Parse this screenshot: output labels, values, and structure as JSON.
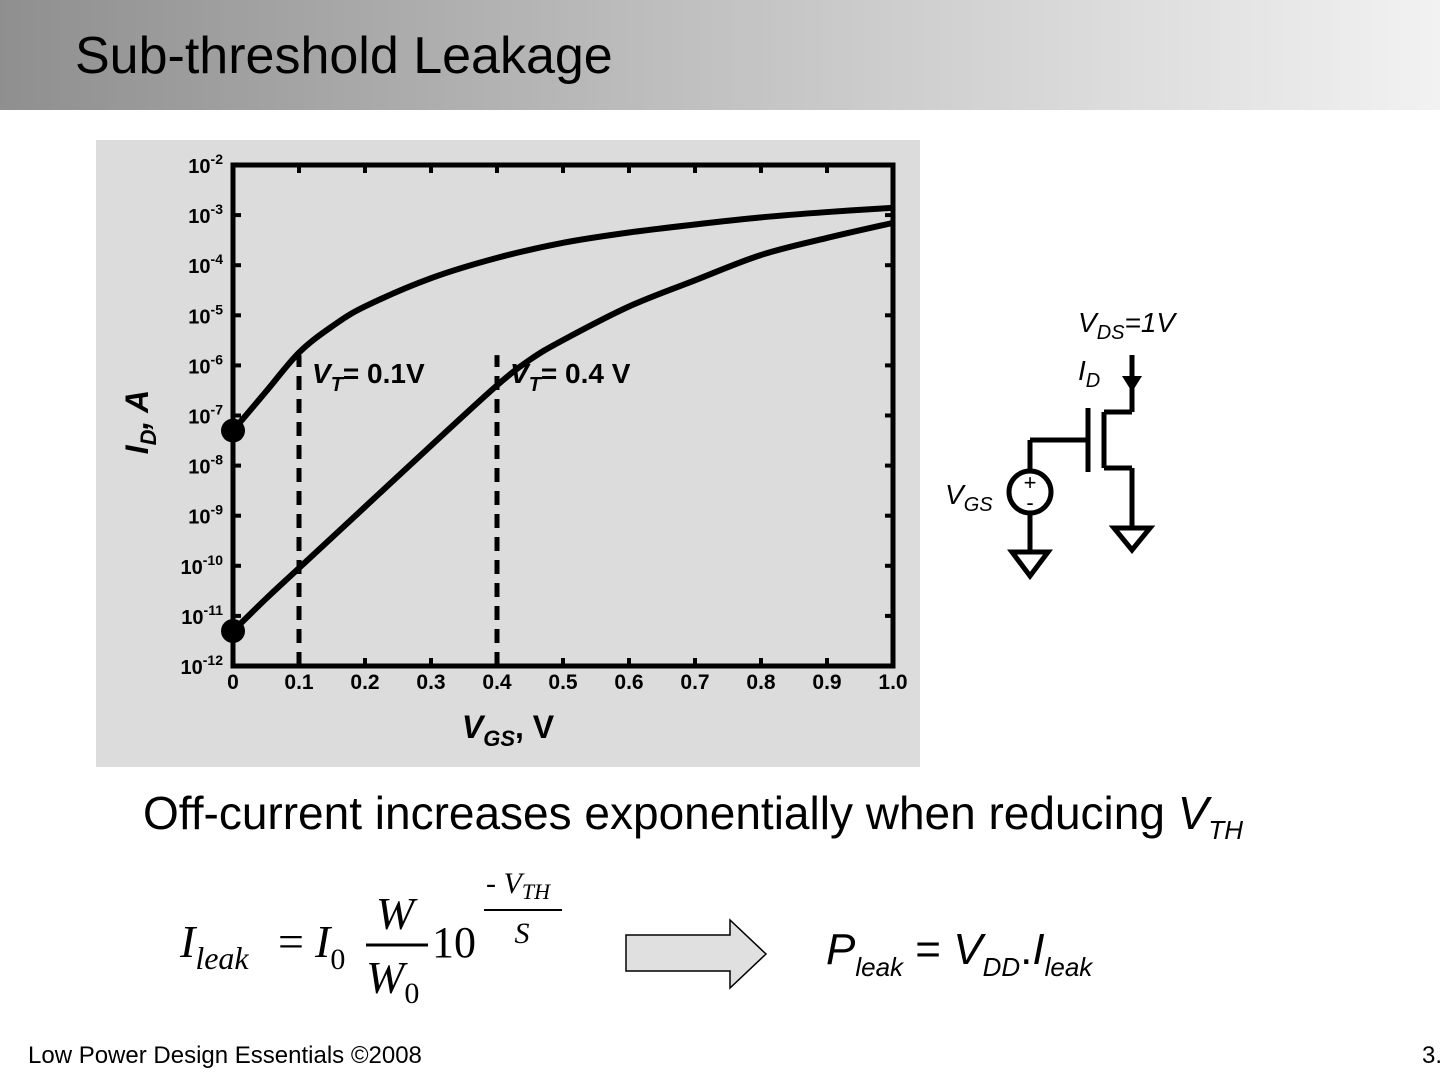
{
  "slide": {
    "title": "Sub-threshold Leakage",
    "footer": "Low Power Design Essentials ©2008",
    "page_number": "3.",
    "statement": {
      "text": "Off-current increases exponentially when reducing ",
      "var_main": "V",
      "var_sub": "TH"
    }
  },
  "chart_data": {
    "type": "line",
    "xlabel_main": "V",
    "xlabel_sub": "GS",
    "xlabel_unit": ", V",
    "ylabel_main": "I",
    "ylabel_sub": "D",
    "ylabel_unit": ", A",
    "y_scale": "log",
    "xlim": [
      0,
      1.0
    ],
    "ylim": [
      1e-12,
      0.01
    ],
    "x_ticks": [
      "0",
      "0.1",
      "0.2",
      "0.3",
      "0.4",
      "0.5",
      "0.6",
      "0.7",
      "0.8",
      "0.9",
      "1.0"
    ],
    "y_tick_exponents": [
      -2,
      -3,
      -4,
      -5,
      -6,
      -7,
      -8,
      -9,
      -10,
      -11,
      -12
    ],
    "series": [
      {
        "label": "VT = 0.1V",
        "label_main": "V",
        "label_sub": "T",
        "label_value": "= 0.1V",
        "vt": 0.1,
        "x": [
          0,
          0.05,
          0.1,
          0.15,
          0.2,
          0.3,
          0.4,
          0.5,
          0.6,
          0.7,
          0.8,
          0.9,
          1.0
        ],
        "y": [
          5e-08,
          3e-07,
          1.8e-06,
          6e-06,
          1.5e-05,
          5.5e-05,
          0.00014,
          0.00028,
          0.00045,
          0.00065,
          0.0009,
          0.00115,
          0.0014
        ]
      },
      {
        "label": "VT = 0.4 V",
        "label_main": "V",
        "label_sub": "T",
        "label_value": "= 0.4 V",
        "vt": 0.4,
        "x": [
          0,
          0.05,
          0.1,
          0.2,
          0.3,
          0.4,
          0.45,
          0.5,
          0.6,
          0.7,
          0.8,
          0.9,
          1.0
        ],
        "y": [
          5e-12,
          2.2e-11,
          9e-11,
          1.5e-09,
          2.5e-08,
          4e-07,
          1.3e-06,
          3.2e-06,
          1.5e-05,
          5e-05,
          0.00016,
          0.00035,
          0.0007
        ]
      }
    ]
  },
  "circuit": {
    "vds_main": "V",
    "vds_sub": "DS",
    "vds_value": "=1V",
    "id_main": "I",
    "id_sub": "D",
    "vgs_main": "V",
    "vgs_sub": "GS",
    "plus": "+",
    "minus": "-"
  },
  "equation": {
    "lhs_main": "I",
    "lhs_sub": "leak",
    "equals": "=",
    "i0_main": "I",
    "i0_sub": "0",
    "num": "W",
    "den_main": "W",
    "den_sub": "0",
    "base": "10",
    "exp_num": "- V",
    "exp_num_sub": "TH",
    "exp_den": "S"
  },
  "power_eq": {
    "p_main": "P",
    "p_sub": "leak",
    "equals": " = ",
    "v_main": "V",
    "v_sub": "DD",
    "dot": ".",
    "i_main": "I",
    "i_sub": "leak"
  }
}
